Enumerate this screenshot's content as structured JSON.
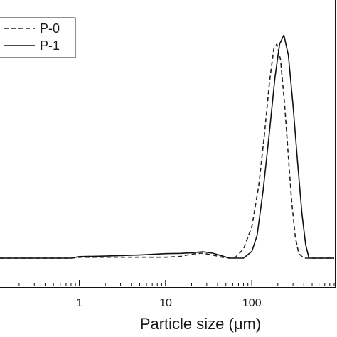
{
  "chart_data": {
    "type": "line",
    "title": "",
    "xlabel": "Particle size (μm)",
    "ylabel": "",
    "xscale": "log",
    "xlim": [
      0.12,
      900
    ],
    "ylim": [
      0,
      1
    ],
    "xticks": [
      {
        "value": 1,
        "label": "1"
      },
      {
        "value": 10,
        "label": "10"
      },
      {
        "value": 100,
        "label": "100"
      }
    ],
    "legend_placement": "top-left",
    "grid": false,
    "series": [
      {
        "name": "P-0",
        "line_style": "dashed",
        "color": "#222222",
        "points": [
          [
            0.12,
            0.0
          ],
          [
            0.8,
            0.0
          ],
          [
            1.0,
            0.004
          ],
          [
            3,
            0.004
          ],
          [
            10,
            0.004
          ],
          [
            15,
            0.008
          ],
          [
            20,
            0.018
          ],
          [
            27,
            0.022
          ],
          [
            35,
            0.014
          ],
          [
            45,
            0.004
          ],
          [
            55,
            0.0
          ],
          [
            65,
            0.005
          ],
          [
            80,
            0.04
          ],
          [
            100,
            0.14
          ],
          [
            120,
            0.32
          ],
          [
            140,
            0.55
          ],
          [
            160,
            0.78
          ],
          [
            180,
            0.93
          ],
          [
            195,
            0.95
          ],
          [
            215,
            0.88
          ],
          [
            240,
            0.68
          ],
          [
            265,
            0.45
          ],
          [
            290,
            0.25
          ],
          [
            320,
            0.09
          ],
          [
            350,
            0.02
          ],
          [
            400,
            0.0
          ],
          [
            900,
            0.0
          ]
        ]
      },
      {
        "name": "P-1",
        "line_style": "solid",
        "color": "#111111",
        "points": [
          [
            0.12,
            0.0
          ],
          [
            0.8,
            0.0
          ],
          [
            1.0,
            0.007
          ],
          [
            2,
            0.009
          ],
          [
            5,
            0.014
          ],
          [
            10,
            0.02
          ],
          [
            15,
            0.021
          ],
          [
            20,
            0.024
          ],
          [
            27,
            0.028
          ],
          [
            35,
            0.022
          ],
          [
            45,
            0.01
          ],
          [
            55,
            0.0
          ],
          [
            80,
            0.0
          ],
          [
            100,
            0.03
          ],
          [
            115,
            0.1
          ],
          [
            135,
            0.3
          ],
          [
            160,
            0.56
          ],
          [
            185,
            0.8
          ],
          [
            210,
            0.95
          ],
          [
            235,
            0.99
          ],
          [
            265,
            0.9
          ],
          [
            300,
            0.68
          ],
          [
            340,
            0.42
          ],
          [
            380,
            0.2
          ],
          [
            420,
            0.06
          ],
          [
            460,
            0.0
          ],
          [
            900,
            0.0
          ]
        ]
      }
    ]
  }
}
